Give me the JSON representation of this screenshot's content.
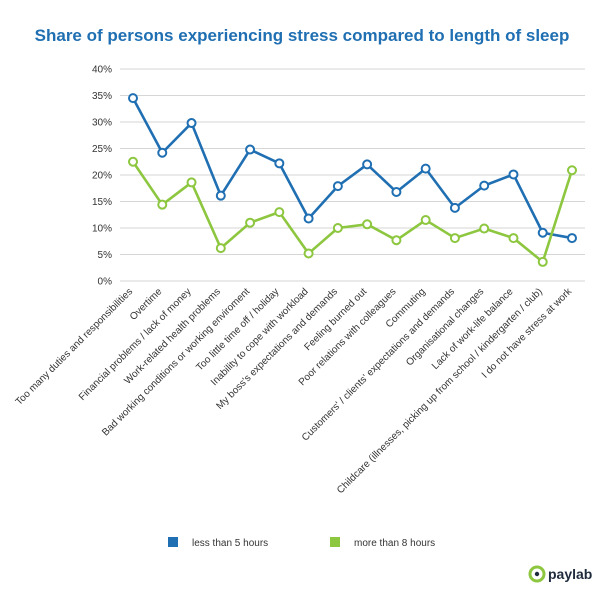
{
  "chart_data": {
    "type": "line",
    "title": "Share of persons experiencing stress compared to length of sleep",
    "categories": [
      "Too many duties and responsibilities",
      "Overtime",
      "Financial problems / lack of money",
      "Work-related health problems",
      "Bad working conditions or working enviroment",
      "Too little time off / holiday",
      "Inability to cope with workload",
      "My boss's expectations and demands",
      "Feeling burned out",
      "Poor relations with colleagues",
      "Commuting",
      "Customers' / clients' expectations and demands",
      "Organisational changes",
      "Lack of work-life balance",
      "Childcare (illnesses, picking up from school / kindergarten / club)",
      "I do not have stress at work"
    ],
    "series": [
      {
        "name": "less than 5 hours",
        "color": "#1f6fb2",
        "values": [
          34.5,
          24.2,
          29.8,
          16.1,
          24.8,
          22.2,
          11.8,
          17.9,
          22.0,
          16.8,
          21.2,
          13.8,
          18.0,
          20.1,
          9.1,
          8.1
        ]
      },
      {
        "name": "more than 8 hours",
        "color": "#8dc63f",
        "values": [
          22.5,
          14.4,
          18.6,
          6.2,
          11.0,
          13.0,
          5.2,
          10.0,
          10.7,
          7.7,
          11.5,
          8.1,
          9.9,
          8.1,
          3.6,
          20.9
        ]
      }
    ],
    "ylim": [
      0,
      40
    ],
    "yticks": [
      "0%",
      "5%",
      "10%",
      "15%",
      "20%",
      "25%",
      "30%",
      "35%",
      "40%"
    ],
    "grid": true,
    "legend_position": "bottom"
  },
  "branding": {
    "logo_text": "paylab"
  }
}
